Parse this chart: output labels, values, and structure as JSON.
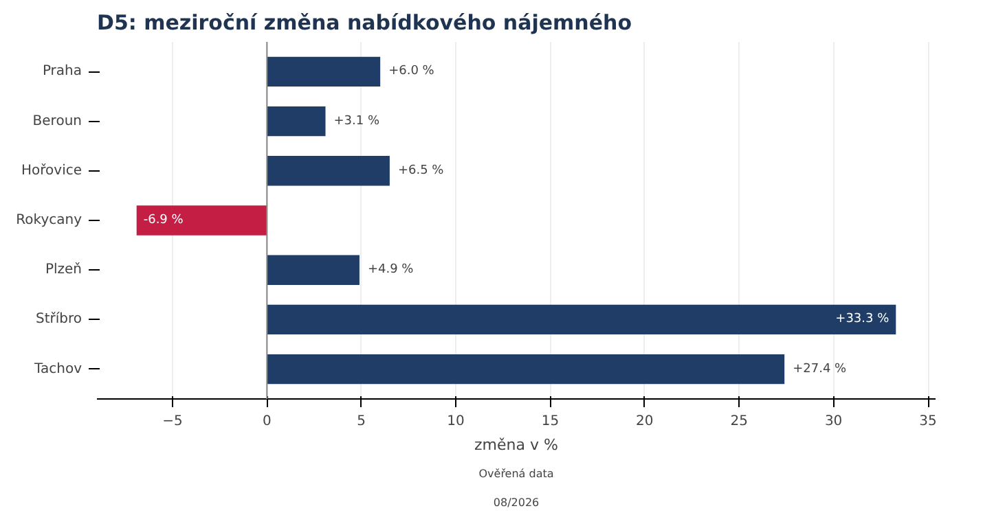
{
  "chart_data": {
    "type": "bar",
    "orientation": "horizontal",
    "title": "D5: meziroční změna nabídkového nájemného",
    "xlabel": "změna v %",
    "categories": [
      "Praha",
      "Beroun",
      "Hořovice",
      "Rokycany",
      "Plzeň",
      "Stříbro",
      "Tachov"
    ],
    "values": [
      6.0,
      3.1,
      6.5,
      -6.9,
      4.9,
      33.3,
      27.4
    ],
    "colors": [
      "#1f3d66",
      "#1f3d66",
      "#1f3d66",
      "#c41e45",
      "#1f3d66",
      "#1f3d66",
      "#1f3d66"
    ],
    "value_labels": [
      "+6.0 %",
      "+3.1 %",
      "+6.5 %",
      "-6.9 %",
      "+4.9 %",
      "+33.3 %",
      "+27.4 %"
    ],
    "xlim": [
      -9,
      35.4
    ],
    "xticks": [
      {
        "value": -5,
        "label": "−5"
      },
      0,
      5,
      10,
      15,
      20,
      25,
      30,
      35
    ],
    "grid": "x",
    "ref_lines": [
      {
        "axis": "x",
        "value": 0,
        "label": null,
        "color": "#888888"
      }
    ],
    "annotations": [
      "Ověřená data",
      "08/2026"
    ]
  }
}
